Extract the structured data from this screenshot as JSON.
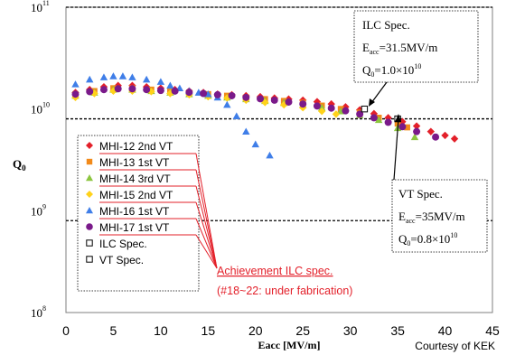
{
  "chart_data": {
    "type": "scatter",
    "xlabel": "Eacc [MV/m]",
    "ylabel": "Q",
    "ylabel_sub": "0",
    "x_ticks": [
      "0",
      "5",
      "10",
      "15",
      "20",
      "25",
      "30",
      "35",
      "40",
      "45"
    ],
    "xlim": [
      0,
      45
    ],
    "ylim": [
      100000000.0,
      100000000000.0
    ],
    "y_scale": "log",
    "y_ticks": [
      {
        "value": 100000000.0,
        "base": "10",
        "exp": "8"
      },
      {
        "value": 1000000000.0,
        "base": "10",
        "exp": "9"
      },
      {
        "value": 10000000000.0,
        "base": "10",
        "exp": "10"
      },
      {
        "value": 100000000000.0,
        "base": "10",
        "exp": "11"
      }
    ],
    "ref_lines": [
      100000000000.0,
      8000000000.0,
      800000000.0
    ],
    "legend_position": "left-middle",
    "series": [
      {
        "name": "MHI-12 2nd VT",
        "marker": "diamond",
        "color": "#e3202a",
        "x": [
          1,
          2.5,
          4,
          5.5,
          7,
          8.5,
          10,
          11.5,
          13,
          14.5,
          16,
          17.5,
          19,
          20.5,
          22,
          23.5,
          25,
          26.5,
          28,
          29.5,
          31,
          32.5,
          34,
          35.5,
          37,
          38.5,
          40,
          41
        ],
        "y": [
          14500000000.0,
          15500000000.0,
          16500000000.0,
          17000000000.0,
          17000000000.0,
          16500000000.0,
          16000000000.0,
          15500000000.0,
          15000000000.0,
          14500000000.0,
          14000000000.0,
          13800000000.0,
          13500000000.0,
          13200000000.0,
          12800000000.0,
          12500000000.0,
          12200000000.0,
          11800000000.0,
          11200000000.0,
          10500000000.0,
          9800000000.0,
          9000000000.0,
          8200000000.0,
          7500000000.0,
          6800000000.0,
          6000000000.0,
          5500000000.0,
          5100000000.0
        ]
      },
      {
        "name": "MHI-13 1st VT",
        "marker": "square",
        "color": "#f28a1a",
        "x": [
          1,
          3,
          5,
          7,
          9,
          11,
          13,
          15,
          17,
          19,
          21,
          23,
          25,
          27,
          29,
          31,
          33,
          35,
          36
        ],
        "y": [
          14000000000.0,
          15000000000.0,
          16000000000.0,
          16000000000.0,
          15500000000.0,
          15000000000.0,
          14500000000.0,
          14000000000.0,
          13500000000.0,
          13000000000.0,
          12500000000.0,
          12000000000.0,
          11500000000.0,
          10800000000.0,
          10000000000.0,
          9200000000.0,
          8200000000.0,
          7200000000.0,
          6600000000.0
        ]
      },
      {
        "name": "MHI-14 3rd VT",
        "marker": "triangle",
        "color": "#8cc63f",
        "x": [
          1,
          3,
          5,
          7,
          9,
          11,
          13,
          15,
          17,
          19,
          21,
          23,
          25,
          27,
          29,
          31,
          33,
          35,
          36.8
        ],
        "y": [
          13500000000.0,
          14500000000.0,
          15500000000.0,
          15500000000.0,
          15000000000.0,
          14500000000.0,
          14000000000.0,
          13500000000.0,
          13000000000.0,
          12500000000.0,
          12000000000.0,
          11500000000.0,
          11000000000.0,
          10300000000.0,
          9500000000.0,
          8700000000.0,
          7800000000.0,
          6500000000.0,
          5300000000.0
        ]
      },
      {
        "name": "MHI-15 2nd VT",
        "marker": "diamond",
        "color": "#ffd21a",
        "x": [
          1,
          3,
          5,
          7,
          9,
          11,
          13,
          15,
          17,
          19,
          21,
          23,
          25,
          27,
          28.5
        ],
        "y": [
          13000000000.0,
          14200000000.0,
          15000000000.0,
          15000000000.0,
          14800000000.0,
          14200000000.0,
          13800000000.0,
          13200000000.0,
          12800000000.0,
          12200000000.0,
          11600000000.0,
          11000000000.0,
          10300000000.0,
          9500000000.0,
          8900000000.0
        ]
      },
      {
        "name": "MHI-16 1st VT",
        "marker": "triangle",
        "color": "#3f7ee8",
        "x": [
          1,
          2.5,
          4,
          5,
          6,
          7,
          8.5,
          10,
          11,
          12,
          13,
          14,
          15,
          16,
          17,
          18,
          19,
          20,
          21.5
        ],
        "y": [
          17500000000.0,
          19500000000.0,
          20500000000.0,
          21000000000.0,
          21000000000.0,
          20500000000.0,
          19500000000.0,
          18500000000.0,
          17000000000.0,
          16000000000.0,
          15000000000.0,
          14500000000.0,
          14000000000.0,
          13000000000.0,
          11000000000.0,
          8500000000.0,
          6000000000.0,
          4500000000.0,
          3500000000.0
        ]
      },
      {
        "name": "MHI-17 1st VT",
        "marker": "circle",
        "color": "#7a1a8a",
        "x": [
          1,
          2.5,
          4,
          5.5,
          7,
          8.5,
          10,
          11.5,
          13,
          14.5,
          16,
          17.5,
          19,
          20.5,
          22,
          23.5,
          25,
          26.5,
          28,
          29.5,
          31,
          32.5,
          34,
          35.5,
          37,
          39
        ],
        "y": [
          14000000000.0,
          14800000000.0,
          15500000000.0,
          15800000000.0,
          15800000000.0,
          15500000000.0,
          15200000000.0,
          15000000000.0,
          14600000000.0,
          14200000000.0,
          13800000000.0,
          13500000000.0,
          13000000000.0,
          12600000000.0,
          12200000000.0,
          11700000000.0,
          11200000000.0,
          10700000000.0,
          10200000000.0,
          9600000000.0,
          8900000000.0,
          8200000000.0,
          7400000000.0,
          6700000000.0,
          6000000000.0,
          5300000000.0
        ]
      },
      {
        "name": "ILC Spec.",
        "marker": "open-square",
        "color": "#000000",
        "x": [
          31.5
        ],
        "y": [
          10000000000.0
        ]
      },
      {
        "name": "VT Spec.",
        "marker": "open-square",
        "color": "#000000",
        "x": [
          35
        ],
        "y": [
          8000000000.0
        ]
      }
    ],
    "annotations": {
      "ilc": {
        "title": "ILC Spec.",
        "e_sym": "E",
        "e_sub": "acc",
        "e_val": "=31.5MV/m",
        "q_sym": "Q",
        "q_sub": "0",
        "q_val": "=1.0×10",
        "q_exp": "10"
      },
      "vt": {
        "title": "VT Spec.",
        "e_sym": "E",
        "e_sub": "acc",
        "e_val": "=35MV/m",
        "q_sym": "Q",
        "q_sub": "0",
        "q_val": "=0.8×10",
        "q_exp": "10"
      },
      "achievement_line1": "Achievement ILC spec.",
      "achievement_line2": "(#18~22: under fabrication)"
    },
    "credit": "Courtesy of KEK"
  }
}
